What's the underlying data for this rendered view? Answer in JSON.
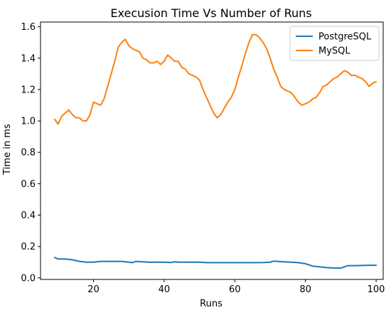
{
  "chart_data": {
    "type": "line",
    "title": "Execusion Time Vs Number of Runs",
    "xlabel": "Runs",
    "ylabel": "Time in ms",
    "xlim": [
      5,
      102
    ],
    "ylim": [
      -0.01,
      1.63
    ],
    "xticks": [
      20,
      40,
      60,
      80,
      100
    ],
    "yticks": [
      0.0,
      0.2,
      0.4,
      0.6,
      0.8,
      1.0,
      1.2,
      1.4,
      1.6
    ],
    "grid": false,
    "legend_position": "upper right",
    "series": [
      {
        "name": "PostgreSQL",
        "color": "#1f77b4",
        "x": [
          9,
          10,
          12,
          14,
          16,
          18,
          20,
          22,
          24,
          26,
          28,
          30,
          31,
          32,
          34,
          36,
          38,
          40,
          42,
          43,
          44,
          46,
          48,
          50,
          52,
          54,
          56,
          58,
          60,
          62,
          64,
          66,
          68,
          70,
          71,
          72,
          74,
          76,
          78,
          80,
          82,
          84,
          86,
          88,
          90,
          92,
          94,
          96,
          98,
          100
        ],
        "y": [
          0.13,
          0.12,
          0.12,
          0.115,
          0.105,
          0.1,
          0.1,
          0.105,
          0.105,
          0.105,
          0.105,
          0.1,
          0.097,
          0.105,
          0.102,
          0.1,
          0.1,
          0.1,
          0.098,
          0.103,
          0.1,
          0.1,
          0.1,
          0.1,
          0.097,
          0.097,
          0.097,
          0.097,
          0.097,
          0.097,
          0.097,
          0.097,
          0.098,
          0.1,
          0.107,
          0.105,
          0.102,
          0.1,
          0.097,
          0.09,
          0.075,
          0.07,
          0.065,
          0.063,
          0.062,
          0.078,
          0.078,
          0.079,
          0.08,
          0.08
        ]
      },
      {
        "name": "MySQL",
        "color": "#ff7f0e",
        "x": [
          9,
          10,
          11,
          12,
          13,
          14,
          15,
          16,
          17,
          18,
          19,
          20,
          21,
          22,
          23,
          24,
          25,
          26,
          27,
          28,
          29,
          30,
          31,
          32,
          33,
          34,
          35,
          36,
          37,
          38,
          39,
          40,
          41,
          42,
          43,
          44,
          45,
          46,
          47,
          48,
          49,
          50,
          51,
          52,
          53,
          54,
          55,
          56,
          57,
          58,
          59,
          60,
          61,
          62,
          63,
          64,
          65,
          66,
          67,
          68,
          69,
          70,
          71,
          72,
          73,
          74,
          75,
          76,
          77,
          78,
          79,
          80,
          81,
          82,
          83,
          84,
          85,
          86,
          87,
          88,
          89,
          90,
          91,
          92,
          93,
          94,
          95,
          96,
          97,
          98,
          99,
          100
        ],
        "y": [
          1.01,
          0.98,
          1.03,
          1.05,
          1.07,
          1.04,
          1.02,
          1.02,
          1.0,
          1.0,
          1.04,
          1.12,
          1.11,
          1.1,
          1.14,
          1.22,
          1.3,
          1.38,
          1.47,
          1.5,
          1.52,
          1.48,
          1.46,
          1.45,
          1.44,
          1.4,
          1.39,
          1.37,
          1.37,
          1.38,
          1.36,
          1.38,
          1.42,
          1.4,
          1.38,
          1.38,
          1.34,
          1.33,
          1.3,
          1.29,
          1.28,
          1.26,
          1.2,
          1.15,
          1.1,
          1.05,
          1.02,
          1.04,
          1.08,
          1.12,
          1.15,
          1.2,
          1.28,
          1.35,
          1.43,
          1.5,
          1.55,
          1.55,
          1.53,
          1.5,
          1.46,
          1.4,
          1.33,
          1.28,
          1.22,
          1.2,
          1.19,
          1.18,
          1.15,
          1.12,
          1.1,
          1.11,
          1.12,
          1.14,
          1.15,
          1.18,
          1.22,
          1.23,
          1.25,
          1.27,
          1.28,
          1.3,
          1.32,
          1.31,
          1.29,
          1.29,
          1.28,
          1.27,
          1.25,
          1.22,
          1.24,
          1.25
        ]
      }
    ]
  }
}
